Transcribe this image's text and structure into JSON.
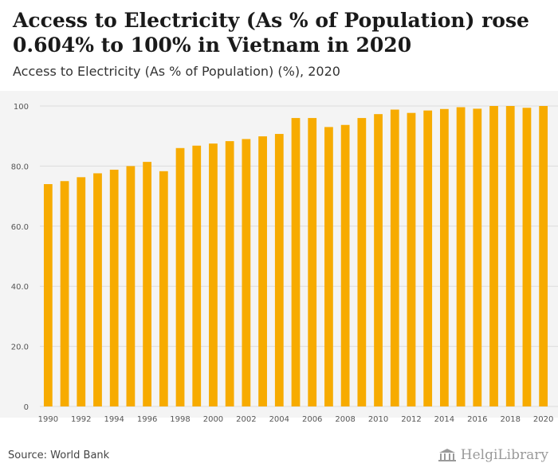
{
  "header": {
    "title": "Access to Electricity (As % of Population) rose 0.604% to 100% in Vietnam in 2020",
    "subtitle": "Access to Electricity (As % of Population) (%), 2020"
  },
  "footer": {
    "source": "Source: World Bank",
    "brand": "HelgiLibrary"
  },
  "colors": {
    "bar": "#f7ab00",
    "grid": "#dcdcdc",
    "axis_text": "#555555"
  },
  "icons": {
    "brand": "library-building-icon"
  },
  "chart_data": {
    "type": "bar",
    "title": "",
    "xlabel": "",
    "ylabel": "",
    "ylim": [
      0,
      100
    ],
    "yticks": [
      0,
      20,
      40,
      60,
      80,
      100
    ],
    "ytick_labels": [
      "0",
      "20.0",
      "40.0",
      "60.0",
      "80.0",
      "100"
    ],
    "grid": true,
    "categories": [
      "1990",
      "1991",
      "1992",
      "1993",
      "1994",
      "1995",
      "1996",
      "1997",
      "1998",
      "1999",
      "2000",
      "2001",
      "2002",
      "2003",
      "2004",
      "2005",
      "2006",
      "2007",
      "2008",
      "2009",
      "2010",
      "2011",
      "2012",
      "2013",
      "2014",
      "2015",
      "2016",
      "2017",
      "2018",
      "2019",
      "2020"
    ],
    "xtick_labels": [
      "1990",
      "1992",
      "1994",
      "1996",
      "1998",
      "2000",
      "2002",
      "2004",
      "2006",
      "2008",
      "2010",
      "2012",
      "2014",
      "2016",
      "2018",
      "2020"
    ],
    "values": [
      74.0,
      75.0,
      76.3,
      77.6,
      78.8,
      80.0,
      81.4,
      78.3,
      86.0,
      86.8,
      87.5,
      88.3,
      89.0,
      89.9,
      90.7,
      96.0,
      96.0,
      93.0,
      93.7,
      96.0,
      97.3,
      98.8,
      97.7,
      98.5,
      99.0,
      99.6,
      99.1,
      100.0,
      100.0,
      99.4,
      100.0
    ]
  }
}
